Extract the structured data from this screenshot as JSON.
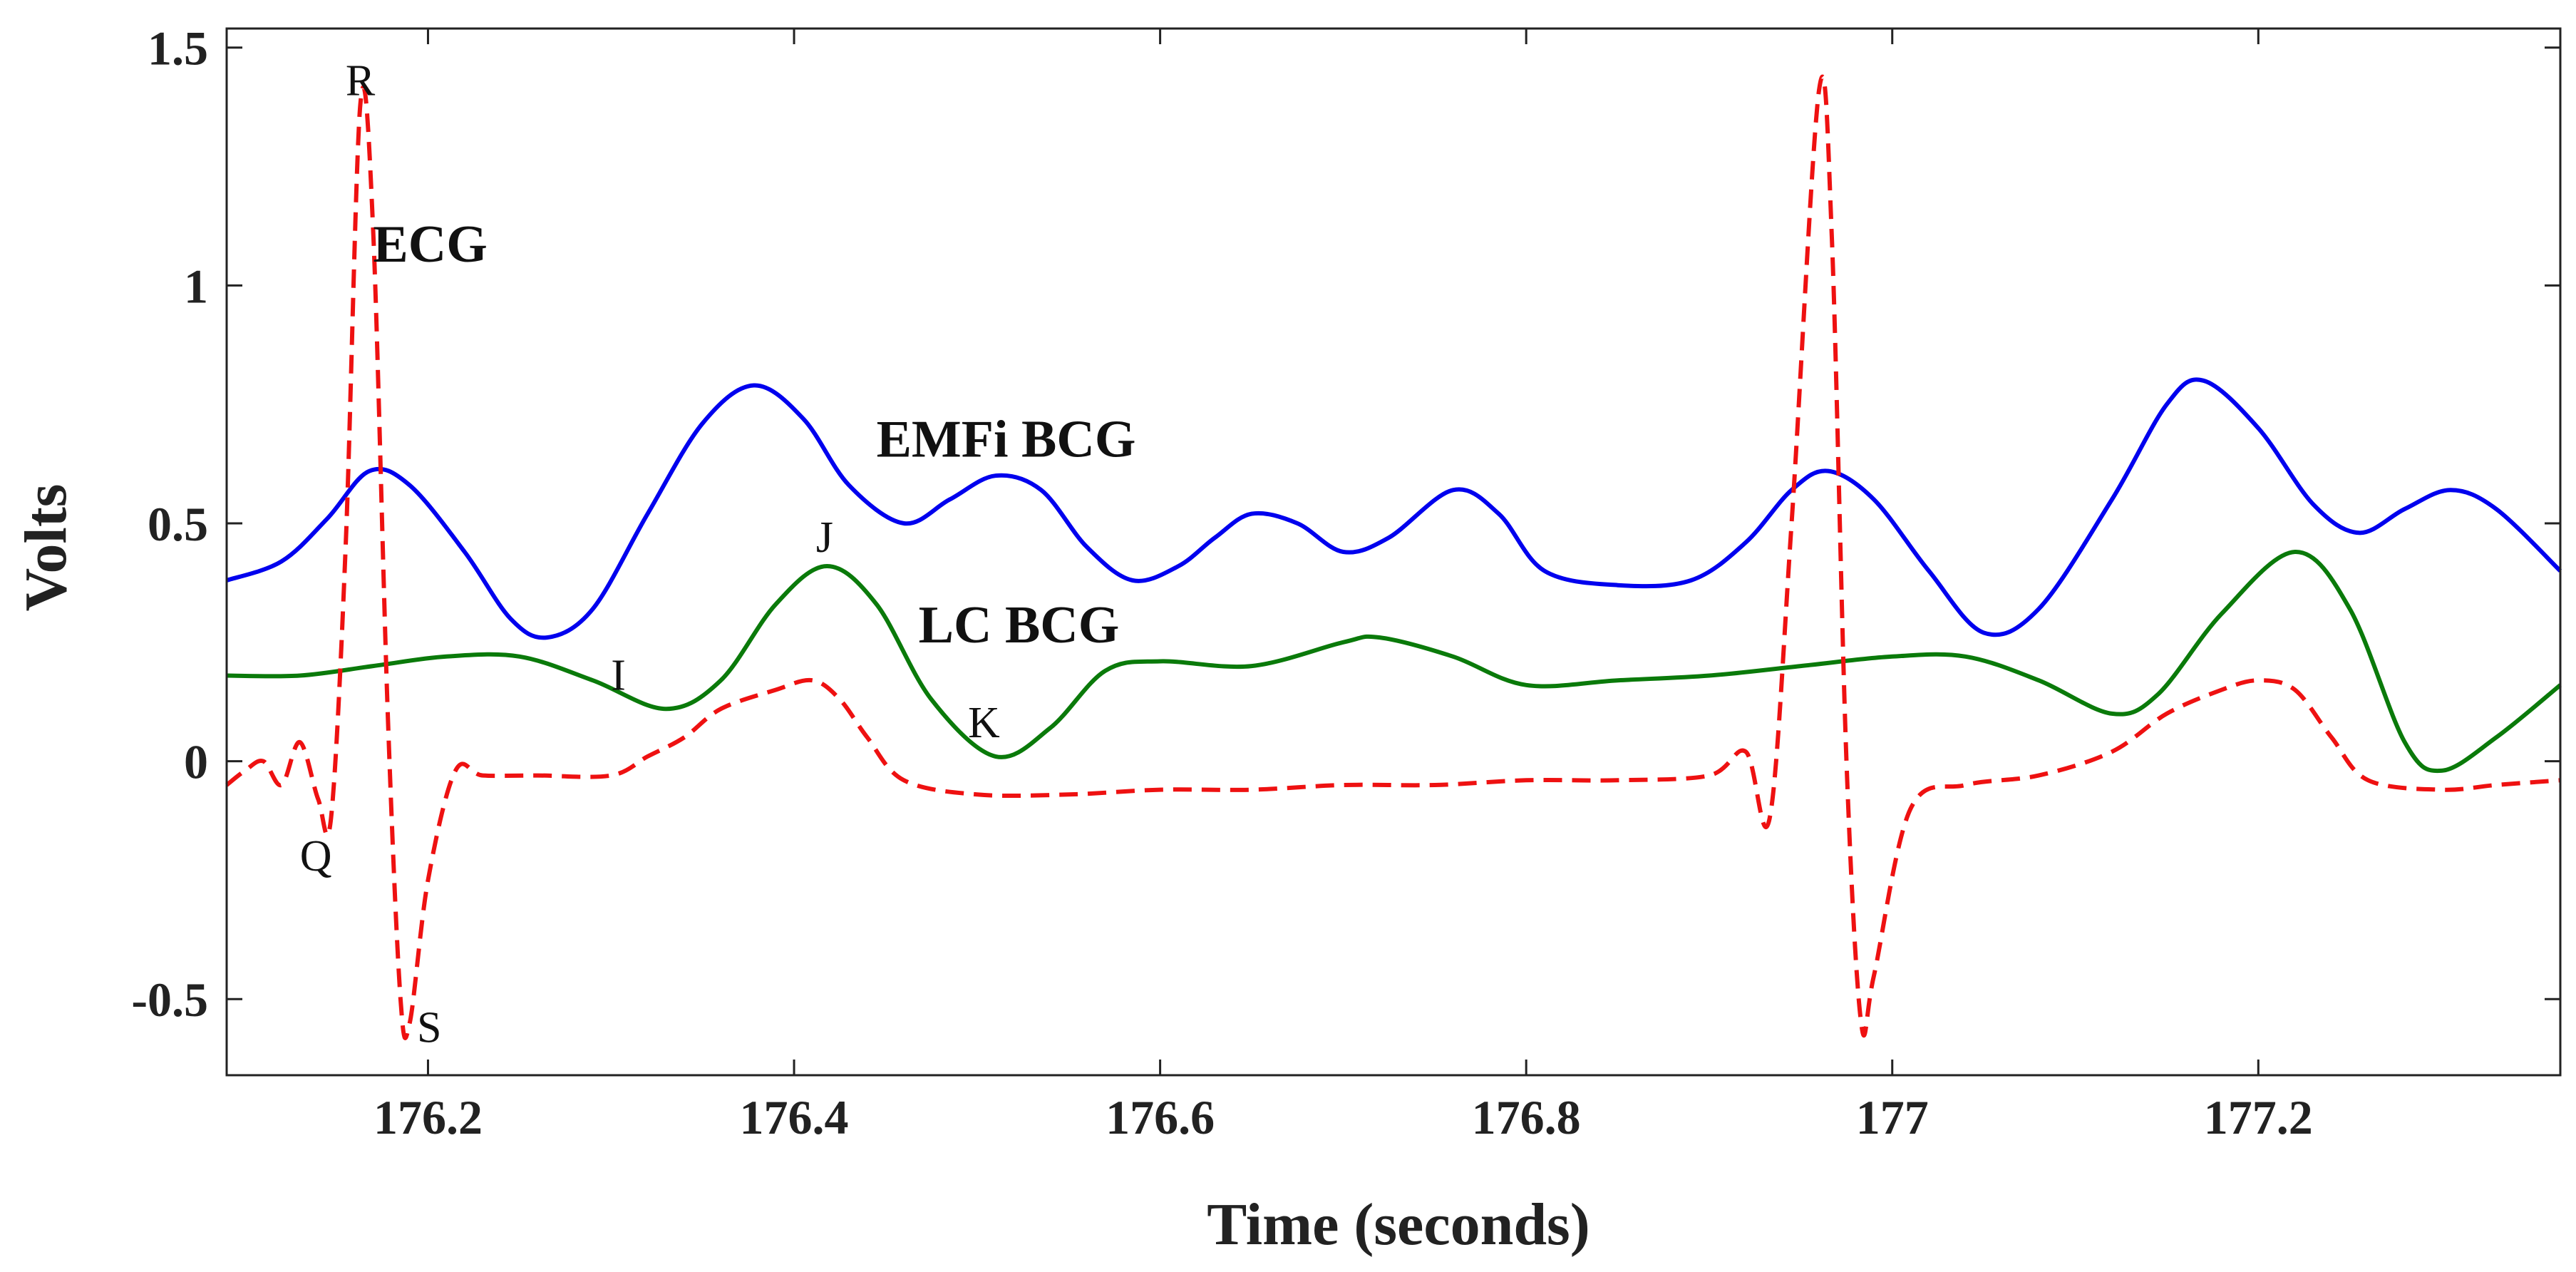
{
  "chart_data": {
    "type": "line",
    "title": "",
    "xlabel": "Time (seconds)",
    "ylabel": "Volts",
    "xlim": [
      176.09,
      177.365
    ],
    "ylim": [
      -0.66,
      1.54
    ],
    "grid": false,
    "x_ticks": [
      176.2,
      176.4,
      176.6,
      176.8,
      177,
      177.2
    ],
    "x_tick_labels": [
      "176.2",
      "176.4",
      "176.6",
      "176.8",
      "177",
      "177.2"
    ],
    "y_ticks": [
      -0.5,
      0,
      0.5,
      1,
      1.5
    ],
    "y_tick_labels": [
      "-0.5",
      "0",
      "0.5",
      "1",
      "1.5"
    ],
    "series": [
      {
        "name": "EMFi BCG",
        "color": "#0000ee",
        "style": "solid",
        "points": [
          [
            176.09,
            0.38
          ],
          [
            176.12,
            0.42
          ],
          [
            176.145,
            0.51
          ],
          [
            176.168,
            0.61
          ],
          [
            176.19,
            0.58
          ],
          [
            176.22,
            0.44
          ],
          [
            176.245,
            0.3
          ],
          [
            176.265,
            0.26
          ],
          [
            176.29,
            0.32
          ],
          [
            176.32,
            0.52
          ],
          [
            176.35,
            0.71
          ],
          [
            176.378,
            0.79
          ],
          [
            176.405,
            0.72
          ],
          [
            176.43,
            0.58
          ],
          [
            176.46,
            0.5
          ],
          [
            176.485,
            0.55
          ],
          [
            176.51,
            0.6
          ],
          [
            176.535,
            0.57
          ],
          [
            176.56,
            0.45
          ],
          [
            176.585,
            0.38
          ],
          [
            176.61,
            0.41
          ],
          [
            176.63,
            0.47
          ],
          [
            176.65,
            0.52
          ],
          [
            176.675,
            0.5
          ],
          [
            176.7,
            0.44
          ],
          [
            176.725,
            0.47
          ],
          [
            176.76,
            0.57
          ],
          [
            176.785,
            0.52
          ],
          [
            176.81,
            0.4
          ],
          [
            176.85,
            0.37
          ],
          [
            176.89,
            0.38
          ],
          [
            176.92,
            0.46
          ],
          [
            176.945,
            0.57
          ],
          [
            176.965,
            0.61
          ],
          [
            176.99,
            0.55
          ],
          [
            177.02,
            0.4
          ],
          [
            177.05,
            0.27
          ],
          [
            177.08,
            0.32
          ],
          [
            177.12,
            0.55
          ],
          [
            177.15,
            0.75
          ],
          [
            177.17,
            0.8
          ],
          [
            177.2,
            0.7
          ],
          [
            177.23,
            0.54
          ],
          [
            177.255,
            0.48
          ],
          [
            177.28,
            0.53
          ],
          [
            177.305,
            0.57
          ],
          [
            177.33,
            0.53
          ],
          [
            177.365,
            0.4
          ]
        ]
      },
      {
        "name": "LC BCG",
        "color": "#0a7a0a",
        "style": "solid",
        "points": [
          [
            176.09,
            0.18
          ],
          [
            176.13,
            0.18
          ],
          [
            176.17,
            0.2
          ],
          [
            176.21,
            0.22
          ],
          [
            176.25,
            0.22
          ],
          [
            176.29,
            0.17
          ],
          [
            176.33,
            0.11
          ],
          [
            176.36,
            0.17
          ],
          [
            176.39,
            0.33
          ],
          [
            176.418,
            0.41
          ],
          [
            176.445,
            0.33
          ],
          [
            176.475,
            0.13
          ],
          [
            176.51,
            0.01
          ],
          [
            176.54,
            0.07
          ],
          [
            176.57,
            0.19
          ],
          [
            176.6,
            0.21
          ],
          [
            176.65,
            0.2
          ],
          [
            176.7,
            0.25
          ],
          [
            176.72,
            0.26
          ],
          [
            176.76,
            0.22
          ],
          [
            176.8,
            0.16
          ],
          [
            176.85,
            0.17
          ],
          [
            176.9,
            0.18
          ],
          [
            176.95,
            0.2
          ],
          [
            177.0,
            0.22
          ],
          [
            177.04,
            0.22
          ],
          [
            177.08,
            0.17
          ],
          [
            177.12,
            0.1
          ],
          [
            177.145,
            0.14
          ],
          [
            177.18,
            0.31
          ],
          [
            177.22,
            0.44
          ],
          [
            177.25,
            0.32
          ],
          [
            177.28,
            0.04
          ],
          [
            177.3,
            -0.02
          ],
          [
            177.33,
            0.05
          ],
          [
            177.365,
            0.16
          ]
        ]
      },
      {
        "name": "ECG",
        "color": "#ee1111",
        "style": "dashed",
        "points": [
          [
            176.09,
            -0.05
          ],
          [
            176.1,
            -0.02
          ],
          [
            176.11,
            0.0
          ],
          [
            176.12,
            -0.05
          ],
          [
            176.13,
            0.04
          ],
          [
            176.14,
            -0.08
          ],
          [
            176.147,
            -0.12
          ],
          [
            176.155,
            0.45
          ],
          [
            176.163,
            1.38
          ],
          [
            176.17,
            1.12
          ],
          [
            176.178,
            0.1
          ],
          [
            176.185,
            -0.5
          ],
          [
            176.19,
            -0.55
          ],
          [
            176.2,
            -0.25
          ],
          [
            176.215,
            -0.02
          ],
          [
            176.23,
            -0.03
          ],
          [
            176.26,
            -0.03
          ],
          [
            176.3,
            -0.03
          ],
          [
            176.32,
            0.01
          ],
          [
            176.34,
            0.05
          ],
          [
            176.36,
            0.11
          ],
          [
            176.39,
            0.15
          ],
          [
            176.41,
            0.17
          ],
          [
            176.425,
            0.13
          ],
          [
            176.44,
            0.05
          ],
          [
            176.46,
            -0.04
          ],
          [
            176.5,
            -0.07
          ],
          [
            176.55,
            -0.07
          ],
          [
            176.6,
            -0.06
          ],
          [
            176.65,
            -0.06
          ],
          [
            176.7,
            -0.05
          ],
          [
            176.75,
            -0.05
          ],
          [
            176.8,
            -0.04
          ],
          [
            176.85,
            -0.04
          ],
          [
            176.9,
            -0.03
          ],
          [
            176.92,
            0.02
          ],
          [
            176.933,
            -0.12
          ],
          [
            176.945,
            0.5
          ],
          [
            176.96,
            1.41
          ],
          [
            176.967,
            1.1
          ],
          [
            176.975,
            0.0
          ],
          [
            176.983,
            -0.55
          ],
          [
            176.99,
            -0.45
          ],
          [
            177.01,
            -0.1
          ],
          [
            177.04,
            -0.05
          ],
          [
            177.08,
            -0.03
          ],
          [
            177.12,
            0.02
          ],
          [
            177.15,
            0.1
          ],
          [
            177.18,
            0.15
          ],
          [
            177.2,
            0.17
          ],
          [
            177.22,
            0.15
          ],
          [
            177.24,
            0.05
          ],
          [
            177.26,
            -0.04
          ],
          [
            177.3,
            -0.06
          ],
          [
            177.33,
            -0.05
          ],
          [
            177.365,
            -0.04
          ]
        ]
      }
    ],
    "series_labels": [
      {
        "text": "ECG",
        "x": 176.17,
        "y": 1.05
      },
      {
        "text": "EMFi BCG",
        "x": 176.445,
        "y": 0.64
      },
      {
        "text": "LC BCG",
        "x": 176.468,
        "y": 0.25
      }
    ],
    "annotations": [
      {
        "text": "R",
        "x": 176.155,
        "y": 1.4
      },
      {
        "text": "Q",
        "x": 176.13,
        "y": -0.23
      },
      {
        "text": "S",
        "x": 176.194,
        "y": -0.59
      },
      {
        "text": "I",
        "x": 176.3,
        "y": 0.15
      },
      {
        "text": "J",
        "x": 176.412,
        "y": 0.44
      },
      {
        "text": "K",
        "x": 176.495,
        "y": 0.05
      }
    ]
  }
}
